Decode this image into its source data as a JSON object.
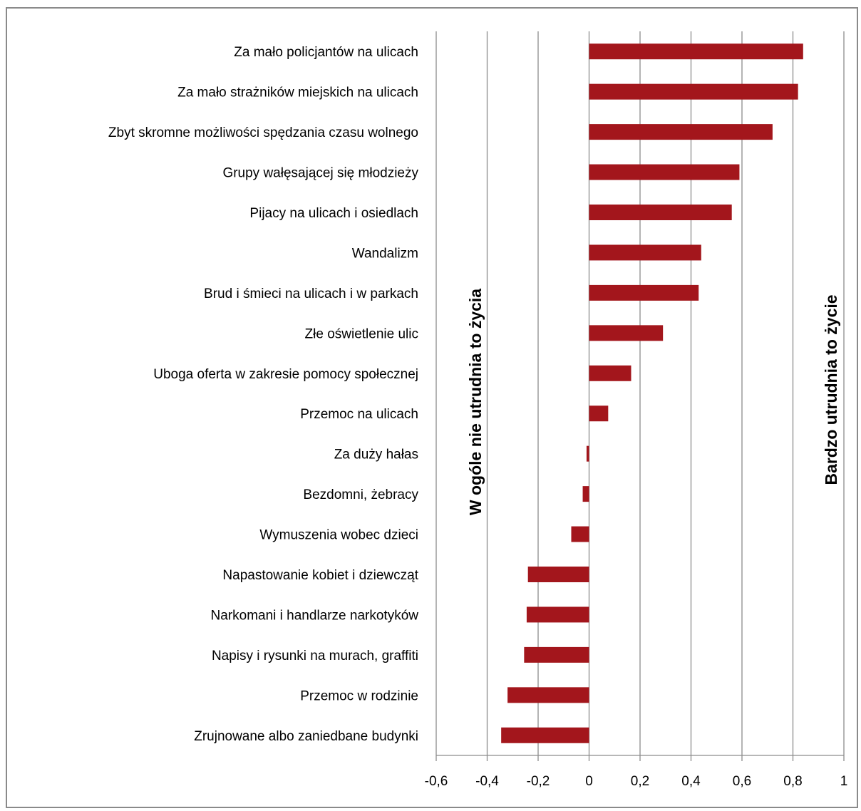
{
  "chart_data": {
    "type": "bar",
    "orientation": "horizontal",
    "categories": [
      "Za mało policjantów na ulicach",
      "Za mało strażników miejskich na ulicach",
      "Zbyt skromne możliwości spędzania czasu wolnego",
      "Grupy wałęsającej się młodzieży",
      "Pijacy na ulicach i osiedlach",
      "Wandalizm",
      "Brud i śmieci na ulicach i w parkach",
      "Złe oświetlenie ulic",
      "Uboga oferta w zakresie pomocy społecznej",
      "Przemoc na ulicach",
      "Za duży hałas",
      "Bezdomni, żebracy",
      "Wymuszenia wobec dzieci",
      "Napastowanie kobiet i dziewcząt",
      "Narkomani i handlarze narkotyków",
      "Napisy i rysunki na murach, graffiti",
      "Przemoc w rodzinie",
      "Zrujnowane albo zaniedbane budynki"
    ],
    "values": [
      0.84,
      0.82,
      0.72,
      0.59,
      0.56,
      0.44,
      0.43,
      0.29,
      0.165,
      0.075,
      -0.01,
      -0.025,
      -0.07,
      -0.24,
      -0.245,
      -0.255,
      -0.32,
      -0.345
    ],
    "xlim": [
      -0.6,
      1
    ],
    "xticks": [
      "-0,6",
      "-0,4",
      "-0,2",
      "0",
      "0,2",
      "0,4",
      "0,6",
      "0,8",
      "1"
    ],
    "xtick_values": [
      -0.6,
      -0.4,
      -0.2,
      0,
      0.2,
      0.4,
      0.6,
      0.8,
      1
    ],
    "grid": "vertical",
    "bar_color": "#a3161c",
    "grid_color": "#8c8c8c",
    "annotations": {
      "left": "W ogóle nie utrudnia to życia",
      "right": "Bardzo utrudnia to życie"
    }
  }
}
